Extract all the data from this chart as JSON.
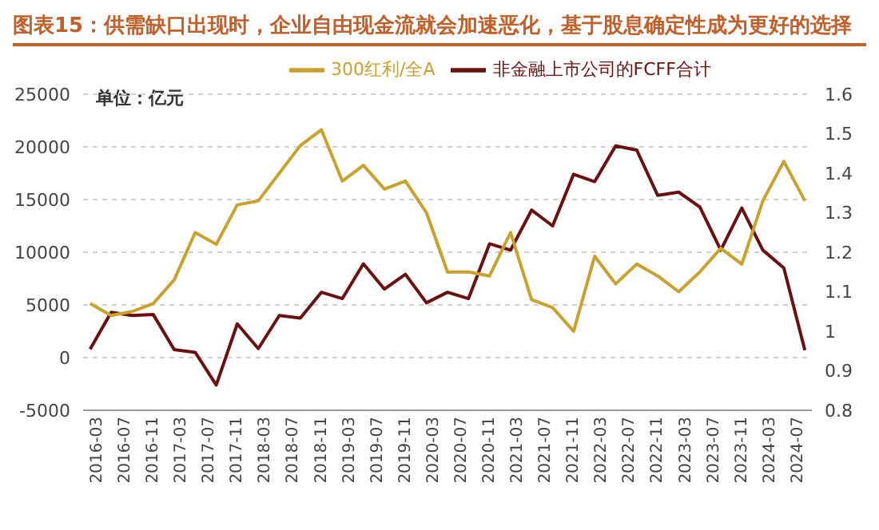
{
  "chart_data": {
    "type": "line",
    "title": "图表15：供需缺口出现时，企业自由现金流就会加速恶化，基于股息确定性成为更好的选择",
    "annotations": [
      "单位：亿元"
    ],
    "x": [
      "2016-03",
      "2016-06",
      "2016-09",
      "2016-12",
      "2017-03",
      "2017-06",
      "2017-09",
      "2017-12",
      "2018-03",
      "2018-06",
      "2018-09",
      "2018-12",
      "2019-03",
      "2019-06",
      "2019-09",
      "2019-12",
      "2020-03",
      "2020-06",
      "2020-09",
      "2020-12",
      "2021-03",
      "2021-06",
      "2021-09",
      "2021-12",
      "2022-03",
      "2022-06",
      "2022-09",
      "2022-12",
      "2023-03",
      "2023-06",
      "2023-09",
      "2023-12",
      "2024-03",
      "2024-06",
      "2024-09"
    ],
    "series": [
      {
        "name": "非金融上市公司的FCFF合计",
        "color": "#6b1010",
        "values": [
          800,
          4300,
          4000,
          4100,
          750,
          500,
          -2600,
          3200,
          850,
          4000,
          3750,
          6200,
          5600,
          8900,
          6500,
          7900,
          5200,
          6200,
          5600,
          10800,
          10200,
          14000,
          12500,
          17400,
          16700,
          20100,
          19700,
          15400,
          15700,
          14300,
          10200,
          14200,
          10200,
          8500,
          700
        ]
      },
      {
        "name": "300红利/全A",
        "color": "#c9a22e",
        "axis": "y2",
        "values": [
          1.07,
          1.04,
          1.05,
          1.07,
          1.13,
          1.25,
          1.22,
          1.32,
          1.33,
          1.4,
          1.47,
          1.51,
          1.38,
          1.42,
          1.36,
          1.38,
          1.3,
          1.15,
          1.15,
          1.14,
          1.25,
          1.08,
          1.06,
          1.0,
          1.19,
          1.12,
          1.17,
          1.14,
          1.1,
          1.15,
          1.21,
          1.17,
          1.33,
          1.43,
          1.33
        ]
      }
    ],
    "xlim": [
      "2016-02",
      "2024-10"
    ],
    "xticks": [
      "2016-03",
      "2016-07",
      "2016-11",
      "2017-03",
      "2017-07",
      "2017-11",
      "2018-03",
      "2018-07",
      "2018-11",
      "2019-03",
      "2019-07",
      "2019-11",
      "2020-03",
      "2020-07",
      "2020-11",
      "2021-03",
      "2021-07",
      "2021-11",
      "2022-03",
      "2022-07",
      "2022-11",
      "2023-03",
      "2023-07",
      "2023-11",
      "2024-03",
      "2024-07"
    ],
    "ylim": [
      -5000,
      25000
    ],
    "yticks": [
      -5000,
      0,
      5000,
      10000,
      15000,
      20000,
      25000
    ],
    "y2lim": [
      0.8,
      1.6
    ],
    "y2ticks": [
      0.8,
      {
        "value": 0.9,
        "label": "0.9"
      },
      1,
      {
        "value": 1.1,
        "label": "1.1"
      },
      {
        "value": 1.2,
        "label": "1.2"
      },
      {
        "value": 1.3,
        "label": "1.3"
      },
      {
        "value": 1.4,
        "label": "1.4"
      },
      {
        "value": 1.5,
        "label": "1.5"
      },
      {
        "value": 1.6,
        "label": "1.6"
      }
    ],
    "grid": "y",
    "legend": "top",
    "marker": "none",
    "line_style": "solid"
  }
}
